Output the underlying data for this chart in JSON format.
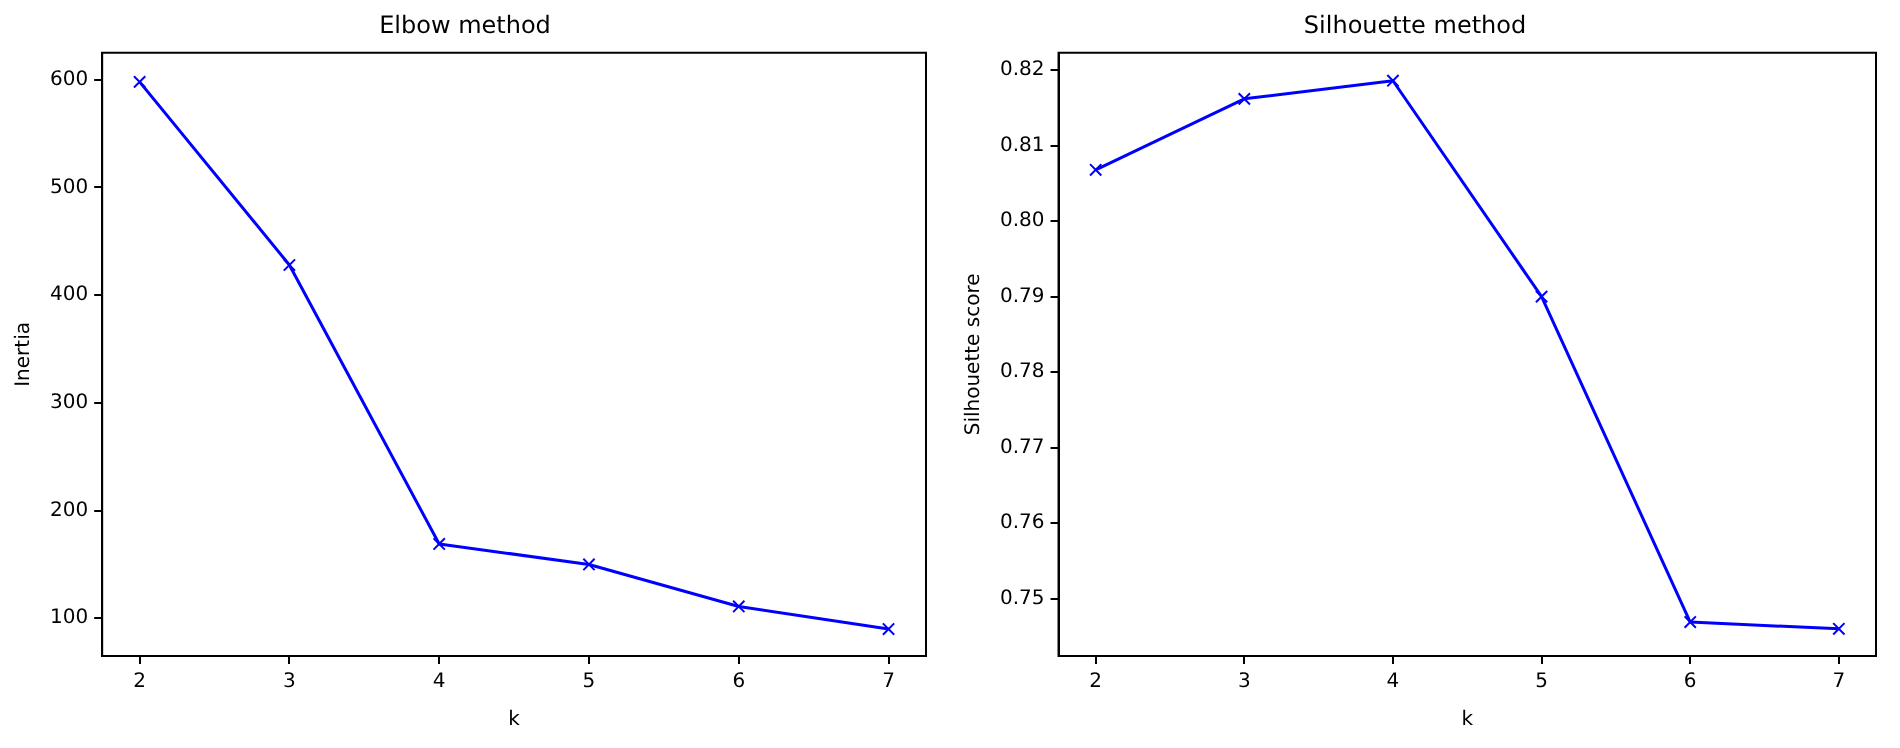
{
  "chart_data": [
    {
      "type": "line",
      "title": "Elbow method",
      "xlabel": "k",
      "ylabel": "Inertia",
      "x": [
        2,
        3,
        4,
        5,
        6,
        7
      ],
      "marker": "cross",
      "line_style": "solid",
      "grid": false,
      "legend": false,
      "xlim": [
        1.75,
        7.25
      ],
      "xticks": [
        2,
        3,
        4,
        5,
        6,
        7
      ],
      "ylim": [
        65,
        625
      ],
      "yticks": [
        100,
        200,
        300,
        400,
        500,
        600
      ],
      "series": [
        {
          "color": "#0000ff",
          "values": [
            598,
            428,
            169,
            150,
            111,
            90
          ]
        }
      ]
    },
    {
      "type": "line",
      "title": "Silhouette method",
      "xlabel": "k",
      "ylabel": "Silhouette score",
      "x": [
        2,
        3,
        4,
        5,
        6,
        7
      ],
      "marker": "cross",
      "line_style": "solid",
      "grid": false,
      "legend": false,
      "xlim": [
        1.75,
        7.25
      ],
      "xticks": [
        2,
        3,
        4,
        5,
        6,
        7
      ],
      "ylim": [
        0.7424,
        0.8223
      ],
      "yticks": [
        {
          "value": 0.75,
          "label": "0.75"
        },
        {
          "value": 0.76,
          "label": "0.76"
        },
        {
          "value": 0.77,
          "label": "0.77"
        },
        {
          "value": 0.78,
          "label": "0.78"
        },
        {
          "value": 0.79,
          "label": "0.79"
        },
        {
          "value": 0.8,
          "label": "0.80"
        },
        {
          "value": 0.81,
          "label": "0.81"
        },
        {
          "value": 0.82,
          "label": "0.82"
        }
      ],
      "series": [
        {
          "color": "#0000ff",
          "values": [
            0.8068,
            0.8162,
            0.8186,
            0.79,
            0.7469,
            0.746
          ]
        }
      ]
    }
  ]
}
